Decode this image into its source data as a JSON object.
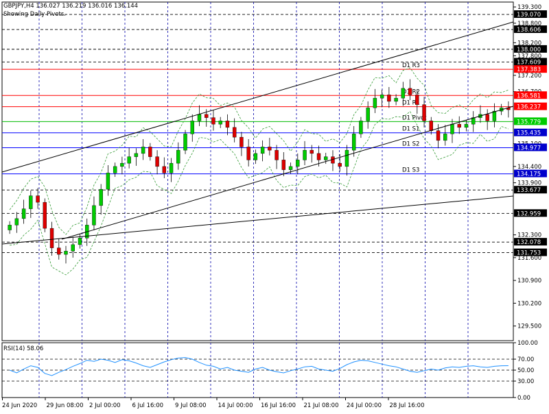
{
  "header": {
    "symbol_line": "GBPJPY,H4  136.027 136.219 136.016 136.144",
    "subtitle": "Showing Daily Pivots."
  },
  "colors": {
    "frame": "#000000",
    "grid": "#0000aa",
    "bull": "#00cc00",
    "bear": "#dd0000",
    "resistance": "#ff0000",
    "support": "#0000ff",
    "pivot": "#00bb00",
    "label_bg_black": "#000000",
    "label_bg_red": "#ff0000",
    "label_bg_green": "#00cc00",
    "label_bg_blue": "#0000cc",
    "rsi_line": "#1e90ff",
    "envelope": "#339933"
  },
  "chart_data": [
    {
      "type": "candlestick",
      "title": "",
      "ylim": [
        129.05,
        139.45
      ],
      "y_ticks": [
        139.3,
        138.8,
        138.2,
        137.8,
        137.2,
        136.7,
        135.1,
        134.4,
        133.9,
        132.3,
        131.6,
        130.9,
        130.2,
        129.5
      ],
      "x_tick_labels": [
        "24 Jun 2020",
        "29 Jun 08:00",
        "2 Jul 00:00",
        "6 Jul 16:00",
        "9 Jul 08:00",
        "14 Jul 00:00",
        "16 Jul 16:00",
        "21 Jul 08:00",
        "24 Jul 00:00",
        "28 Jul 16:00"
      ],
      "close": [
        132.6,
        132.8,
        133.1,
        133.5,
        133.3,
        132.5,
        131.9,
        131.7,
        131.8,
        132.0,
        132.2,
        132.6,
        133.2,
        133.7,
        134.2,
        134.4,
        134.5,
        134.7,
        134.8,
        135.0,
        134.7,
        134.4,
        134.2,
        134.5,
        134.9,
        135.4,
        135.8,
        136.0,
        135.9,
        135.7,
        135.8,
        135.6,
        135.3,
        135.0,
        134.6,
        134.8,
        135.0,
        134.9,
        134.6,
        134.3,
        134.4,
        134.6,
        134.9,
        134.8,
        134.6,
        134.7,
        134.5,
        134.4,
        134.9,
        135.4,
        135.8,
        136.2,
        136.5,
        136.6,
        136.4,
        136.5,
        136.8,
        136.6,
        136.3,
        135.8,
        135.5,
        135.2,
        135.4,
        135.7,
        135.6,
        135.7,
        135.9,
        136.0,
        135.8,
        136.1,
        136.2,
        136.144
      ],
      "overlays": [
        {
          "label": "D1 R3",
          "value": 137.383,
          "label_text": "137.383",
          "color_key": "resistance"
        },
        {
          "label": "D1 R2",
          "value": 136.581,
          "label_text": "136.581",
          "color_key": "resistance"
        },
        {
          "label": "D1 R1",
          "value": 136.237,
          "label_text": "136.237",
          "color_key": "resistance"
        },
        {
          "label": "D1 Pivot",
          "value": 135.779,
          "label_text": "135.779",
          "color_key": "pivot"
        },
        {
          "label": "D1 S1",
          "value": 135.435,
          "label_text": "135.435",
          "color_key": "support"
        },
        {
          "label": "D1 S2",
          "value": 134.977,
          "label_text": "134.977",
          "color_key": "support"
        },
        {
          "label": "D1 S3",
          "value": 134.175,
          "label_text": "134.175",
          "color_key": "support"
        }
      ],
      "dashed_levels": [
        {
          "value": 139.07,
          "label_text": "139.070"
        },
        {
          "value": 138.606,
          "label_text": "138.606"
        },
        {
          "value": 138.0,
          "label_text": "138.000"
        },
        {
          "value": 137.609,
          "label_text": "137.609"
        },
        {
          "value": 133.677,
          "label_text": "133.677"
        },
        {
          "value": 132.959,
          "label_text": "132.959"
        },
        {
          "value": 132.078,
          "label_text": "132.078"
        },
        {
          "value": 131.753,
          "label_text": "131.753"
        }
      ]
    },
    {
      "type": "line",
      "title": "RSI(14) 58.06",
      "ylim": [
        0,
        100
      ],
      "y_ticks": [
        100,
        70,
        50,
        30,
        0
      ],
      "levels": [
        70,
        50,
        30
      ],
      "values": [
        50,
        45,
        52,
        58,
        55,
        44,
        40,
        46,
        51,
        57,
        62,
        68,
        66,
        70,
        68,
        64,
        69,
        67,
        63,
        58,
        55,
        60,
        65,
        69,
        72,
        73,
        70,
        64,
        59,
        57,
        52,
        55,
        50,
        48,
        46,
        52,
        55,
        50,
        47,
        45,
        49,
        52,
        56,
        57,
        52,
        50,
        48,
        53,
        60,
        65,
        68,
        67,
        64,
        61,
        58,
        56,
        52,
        48,
        46,
        49,
        52,
        50,
        54,
        56,
        55,
        57,
        58,
        56,
        55,
        57,
        58,
        58.06
      ]
    }
  ]
}
